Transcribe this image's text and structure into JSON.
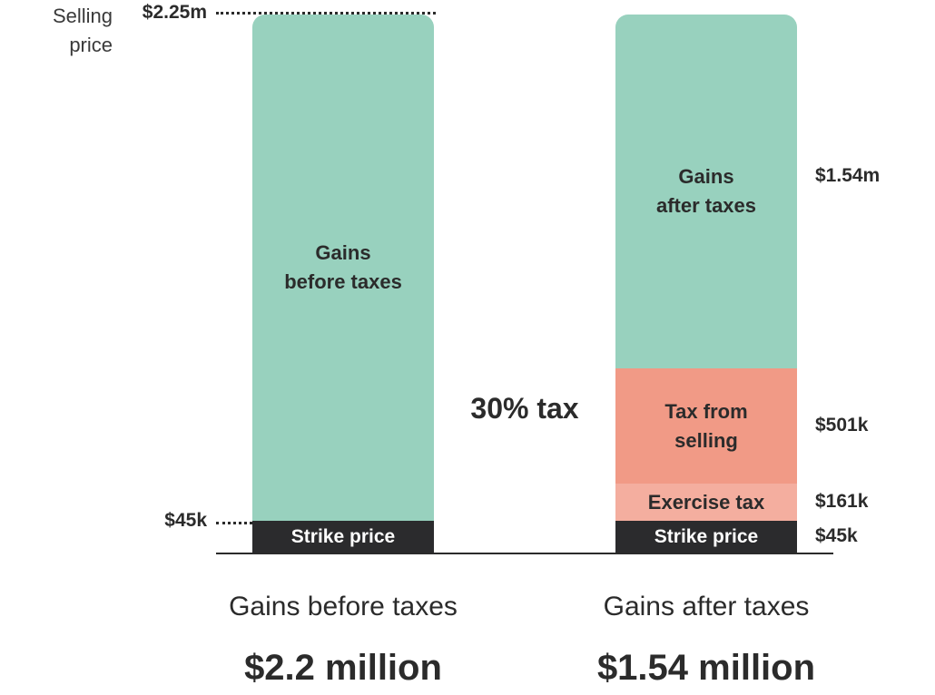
{
  "chart_data": {
    "type": "bar",
    "stacked": true,
    "axis": {
      "ylim": [
        0,
        2250000
      ],
      "ticks": [
        {
          "value": 2250000,
          "label": "$2.25m",
          "note": "Selling\nprice"
        },
        {
          "value": 45000,
          "label": "$45k"
        }
      ]
    },
    "middle_label": "30% tax",
    "bars": [
      {
        "name": "before",
        "caption": "Gains before taxes",
        "total_label": "$2.2 million",
        "segments": [
          {
            "key": "strike",
            "label": "Strike price",
            "value": 45000,
            "color": "#2b2b2d"
          },
          {
            "key": "gains",
            "label": "Gains before taxes",
            "line1": "Gains",
            "line2": "before taxes",
            "value": 2205000,
            "color": "#98d1be"
          }
        ]
      },
      {
        "name": "after",
        "caption": "Gains after taxes",
        "total_label": "$1.54 million",
        "segments": [
          {
            "key": "strike",
            "label": "Strike price",
            "value": 45000,
            "value_label": "$45k",
            "color": "#2b2b2d"
          },
          {
            "key": "exercise_tax",
            "label": "Exercise tax",
            "value": 161000,
            "value_label": "$161k",
            "color": "#f4ae9f"
          },
          {
            "key": "selling_tax",
            "label": "Tax from selling",
            "line1": "Tax from",
            "line2": "selling",
            "value": 501000,
            "value_label": "$501k",
            "color": "#f19a86"
          },
          {
            "key": "gains",
            "label": "Gains after taxes",
            "line1": "Gains",
            "line2": "after taxes",
            "value": 1543000,
            "value_label": "$1.54m",
            "color": "#98d1be"
          }
        ]
      }
    ]
  }
}
